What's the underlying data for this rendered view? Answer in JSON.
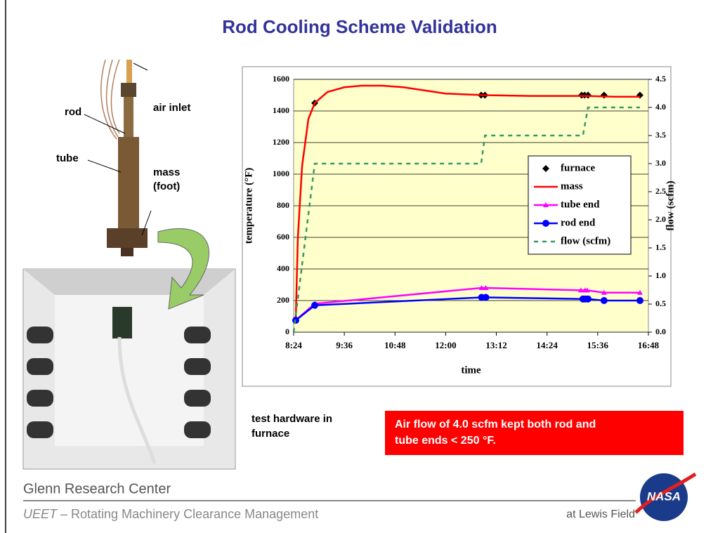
{
  "title": "Rod Cooling Scheme Validation",
  "photo_labels": {
    "rod": "rod",
    "air_inlet": "air inlet",
    "tube": "tube",
    "mass": [
      "mass",
      "(foot)"
    ]
  },
  "caption": [
    "test hardware in",
    "furnace"
  ],
  "callout": [
    "Air flow of 4.0 scfm kept both rod and",
    "tube ends < 250 °F."
  ],
  "footer": {
    "center": "Glenn Research Center",
    "program": "UEET",
    "project": " – Rotating Machinery Clearance Management",
    "field": "at Lewis Field",
    "logo": "NASA"
  },
  "chart_data": {
    "type": "line",
    "xlabel": "time",
    "ylabel": "temperature (°F)",
    "y2label": "flow (scfm)",
    "xlim": [
      8.4,
      16.8
    ],
    "xticks": [
      {
        "value": 8.4,
        "label": "8:24"
      },
      {
        "value": 9.6,
        "label": "9:36"
      },
      {
        "value": 10.8,
        "label": "10:48"
      },
      {
        "value": 12.0,
        "label": "12:00"
      },
      {
        "value": 13.2,
        "label": "13:12"
      },
      {
        "value": 14.4,
        "label": "14:24"
      },
      {
        "value": 15.6,
        "label": "15:36"
      },
      {
        "value": 16.8,
        "label": "16:48"
      }
    ],
    "ylim": [
      0,
      1600
    ],
    "yticks": [
      0,
      200,
      400,
      600,
      800,
      1000,
      1200,
      1400,
      1600
    ],
    "y2lim": [
      0,
      4.5
    ],
    "y2ticks": [
      {
        "value": 0,
        "label": "0.0"
      },
      0.5,
      {
        "value": 1,
        "label": "1.0"
      },
      1.5,
      {
        "value": 2,
        "label": "2.0"
      },
      2.5,
      {
        "value": 3,
        "label": "3.0"
      },
      3.5,
      {
        "value": 4,
        "label": "4.0"
      },
      4.5
    ],
    "grid": true,
    "legend": "right",
    "background": "#ffffcc",
    "series": [
      {
        "name": "furnace",
        "color": "#000000",
        "marker": "diamond",
        "line": false,
        "x": [
          8.9,
          12.84,
          12.93,
          15.22,
          15.29,
          15.37,
          15.75,
          16.6
        ],
        "values": [
          1450,
          1500,
          1500,
          1500,
          1500,
          1500,
          1500,
          1500
        ]
      },
      {
        "name": "mass",
        "color": "#ff0000",
        "marker": "none",
        "line": true,
        "x": [
          8.45,
          8.5,
          8.6,
          8.75,
          8.9,
          9.2,
          9.6,
          10.0,
          10.5,
          11.0,
          11.5,
          12.0,
          12.9,
          14.0,
          15.3,
          16.0,
          16.6
        ],
        "values": [
          80,
          600,
          1050,
          1350,
          1450,
          1520,
          1550,
          1560,
          1560,
          1550,
          1530,
          1510,
          1500,
          1495,
          1495,
          1490,
          1490
        ]
      },
      {
        "name": "tube end",
        "color": "#ff00ff",
        "marker": "triangle",
        "line": true,
        "x": [
          8.45,
          8.9,
          12.85,
          12.95,
          15.2,
          15.3,
          15.35,
          15.75,
          16.6
        ],
        "values": [
          75,
          180,
          280,
          280,
          265,
          265,
          265,
          250,
          250
        ]
      },
      {
        "name": "rod end",
        "color": "#0000ff",
        "marker": "circle",
        "line": true,
        "x": [
          8.45,
          8.9,
          12.85,
          12.95,
          15.25,
          15.3,
          15.37,
          15.75,
          16.6
        ],
        "values": [
          75,
          170,
          220,
          220,
          210,
          210,
          210,
          200,
          200
        ]
      },
      {
        "name": "flow (scfm)",
        "color": "#339966",
        "marker": "none",
        "line": true,
        "dashed": true,
        "axis": "y2",
        "x": [
          8.4,
          8.9,
          12.84,
          12.93,
          15.25,
          15.37,
          16.6
        ],
        "values": [
          0,
          3.0,
          3.0,
          3.5,
          3.5,
          4.0,
          4.0
        ]
      }
    ]
  }
}
